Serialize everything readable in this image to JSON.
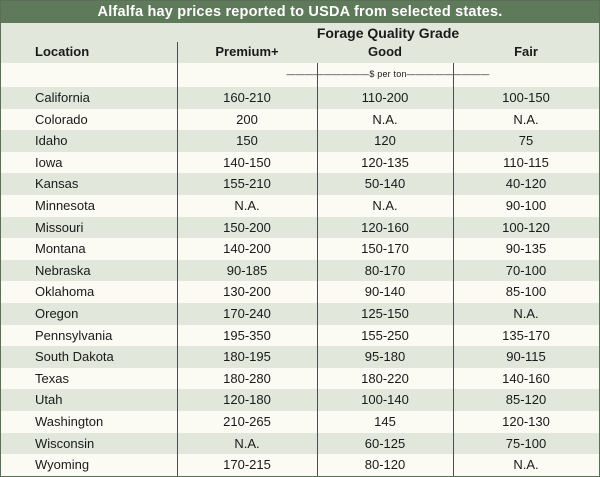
{
  "title": "Alfalfa hay prices reported to USDA from selected states.",
  "header": {
    "grade_group": "Forage Quality Grade",
    "location": "Location",
    "premium": "Premium+",
    "good": "Good",
    "fair": "Fair"
  },
  "unit_label": "—————————$ per ton—————————",
  "rows": [
    {
      "location": "California",
      "premium": "160-210",
      "good": "110-200",
      "fair": "100-150"
    },
    {
      "location": "Colorado",
      "premium": "200",
      "good": "N.A.",
      "fair": "N.A."
    },
    {
      "location": "Idaho",
      "premium": "150",
      "good": "120",
      "fair": "75"
    },
    {
      "location": "Iowa",
      "premium": "140-150",
      "good": "120-135",
      "fair": "110-115"
    },
    {
      "location": "Kansas",
      "premium": "155-210",
      "good": "50-140",
      "fair": "40-120"
    },
    {
      "location": "Minnesota",
      "premium": "N.A.",
      "good": "N.A.",
      "fair": "90-100"
    },
    {
      "location": "Missouri",
      "premium": "150-200",
      "good": "120-160",
      "fair": "100-120"
    },
    {
      "location": "Montana",
      "premium": "140-200",
      "good": "150-170",
      "fair": "90-135"
    },
    {
      "location": "Nebraska",
      "premium": "90-185",
      "good": "80-170",
      "fair": "70-100"
    },
    {
      "location": "Oklahoma",
      "premium": "130-200",
      "good": "90-140",
      "fair": "85-100"
    },
    {
      "location": "Oregon",
      "premium": "170-240",
      "good": "125-150",
      "fair": "N.A."
    },
    {
      "location": "Pennsylvania",
      "premium": "195-350",
      "good": "155-250",
      "fair": "135-170"
    },
    {
      "location": "South Dakota",
      "premium": "180-195",
      "good": "95-180",
      "fair": "90-115"
    },
    {
      "location": "Texas",
      "premium": "180-280",
      "good": "180-220",
      "fair": "140-160"
    },
    {
      "location": "Utah",
      "premium": "120-180",
      "good": "100-140",
      "fair": "85-120"
    },
    {
      "location": "Washington",
      "premium": "210-265",
      "good": "145",
      "fair": "120-130"
    },
    {
      "location": "Wisconsin",
      "premium": "N.A.",
      "good": "60-125",
      "fair": "75-100"
    },
    {
      "location": "Wyoming",
      "premium": "170-215",
      "good": "80-120",
      "fair": "N.A."
    }
  ]
}
